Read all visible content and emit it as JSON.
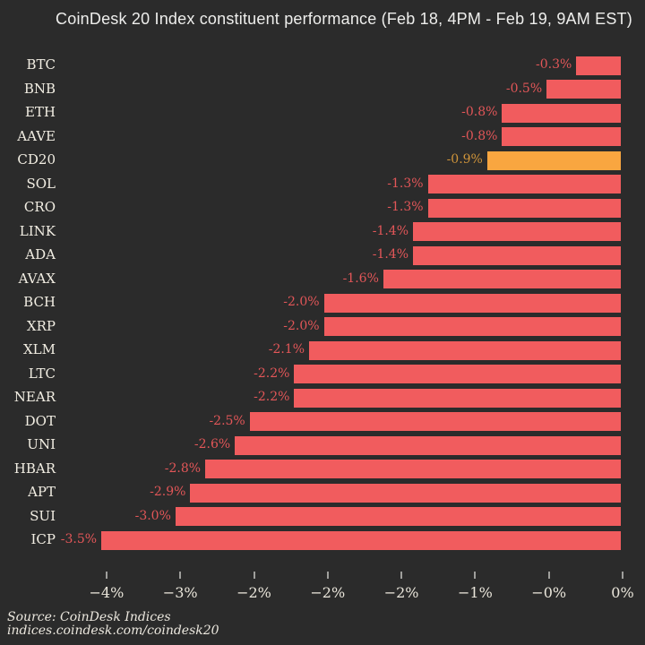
{
  "title": "CoinDesk 20 Index constituent performance (Feb 18, 4PM - Feb 19, 9AM EST)",
  "source": {
    "line1": "Source: CoinDesk Indices",
    "line2": "indices.coindesk.com/coindesk20"
  },
  "colors": {
    "background": "#2b2b2b",
    "bar": "#f15c5e",
    "bar_label": "#e25658",
    "highlight_bar": "#f9a640",
    "highlight_label": "#cf943a",
    "text": "#f2eee3",
    "tick": "#9f9f9c"
  },
  "chart_data": {
    "type": "bar",
    "orientation": "horizontal",
    "title": "CoinDesk 20 Index constituent performance (Feb 18, 4PM - Feb 19, 9AM EST)",
    "categories": [
      "BTC",
      "BNB",
      "ETH",
      "AAVE",
      "CD20",
      "SOL",
      "CRO",
      "LINK",
      "ADA",
      "AVAX",
      "BCH",
      "XRP",
      "XLM",
      "LTC",
      "NEAR",
      "DOT",
      "UNI",
      "HBAR",
      "APT",
      "SUI",
      "ICP"
    ],
    "values": [
      -0.3,
      -0.5,
      -0.8,
      -0.8,
      -0.9,
      -1.3,
      -1.3,
      -1.4,
      -1.4,
      -1.6,
      -2.0,
      -2.0,
      -2.1,
      -2.2,
      -2.2,
      -2.5,
      -2.6,
      -2.8,
      -2.9,
      -3.0,
      -3.5
    ],
    "value_labels": [
      "-0.3%",
      "-0.5%",
      "-0.8%",
      "-0.8%",
      "-0.9%",
      "-1.3%",
      "-1.3%",
      "-1.4%",
      "-1.4%",
      "-1.6%",
      "-2.0%",
      "-2.0%",
      "-2.1%",
      "-2.2%",
      "-2.2%",
      "-2.5%",
      "-2.6%",
      "-2.8%",
      "-2.9%",
      "-3.0%",
      "-3.5%"
    ],
    "highlight_category": "CD20",
    "xlim": [
      -3.9,
      0.05
    ],
    "x_tick_values": [
      -3.5,
      -3.0,
      -2.5,
      -2.0,
      -1.5,
      -1.0,
      -0.5,
      0.0
    ],
    "x_tick_labels": [
      "−4%",
      "−3%",
      "−2%",
      "−2%",
      "−2%",
      "−1%",
      "−0%",
      "0%"
    ],
    "grid": false,
    "legend": "none"
  }
}
